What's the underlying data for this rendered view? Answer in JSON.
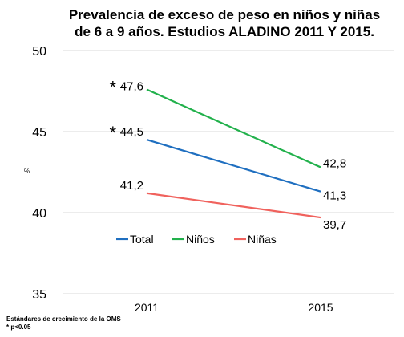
{
  "chart_data": {
    "type": "line",
    "title_lines": [
      "Prevalencia de exceso de peso en niños y niñas",
      "de 6 a 9 años. Estudios ALADINO 2011 Y 2015."
    ],
    "ylabel": "%",
    "xlabel": "",
    "categories": [
      "2011",
      "2015"
    ],
    "ylim": [
      35,
      50
    ],
    "yticks": [
      "35",
      "40",
      "45",
      "50"
    ],
    "grid": "horizontal",
    "legend_position": "inside-bottom-center",
    "series": [
      {
        "name": "Total",
        "values": [
          44.5,
          41.3
        ],
        "labels": [
          "44,5",
          "41,3"
        ],
        "color": "#1f6fc0",
        "marked_with_asterisk": [
          true,
          false
        ]
      },
      {
        "name": "Niños",
        "values": [
          47.6,
          42.8
        ],
        "labels": [
          "47,6",
          "42,8"
        ],
        "color": "#22b14c",
        "marked_with_asterisk": [
          true,
          false
        ]
      },
      {
        "name": "Niñas",
        "values": [
          41.2,
          39.7
        ],
        "labels": [
          "41,2",
          "39,7"
        ],
        "color": "#f0625d",
        "marked_with_asterisk": [
          false,
          false
        ]
      }
    ],
    "asterisk": "*",
    "footnotes": [
      "Estándares de crecimiento de la OMS",
      "* p<0.05"
    ]
  }
}
